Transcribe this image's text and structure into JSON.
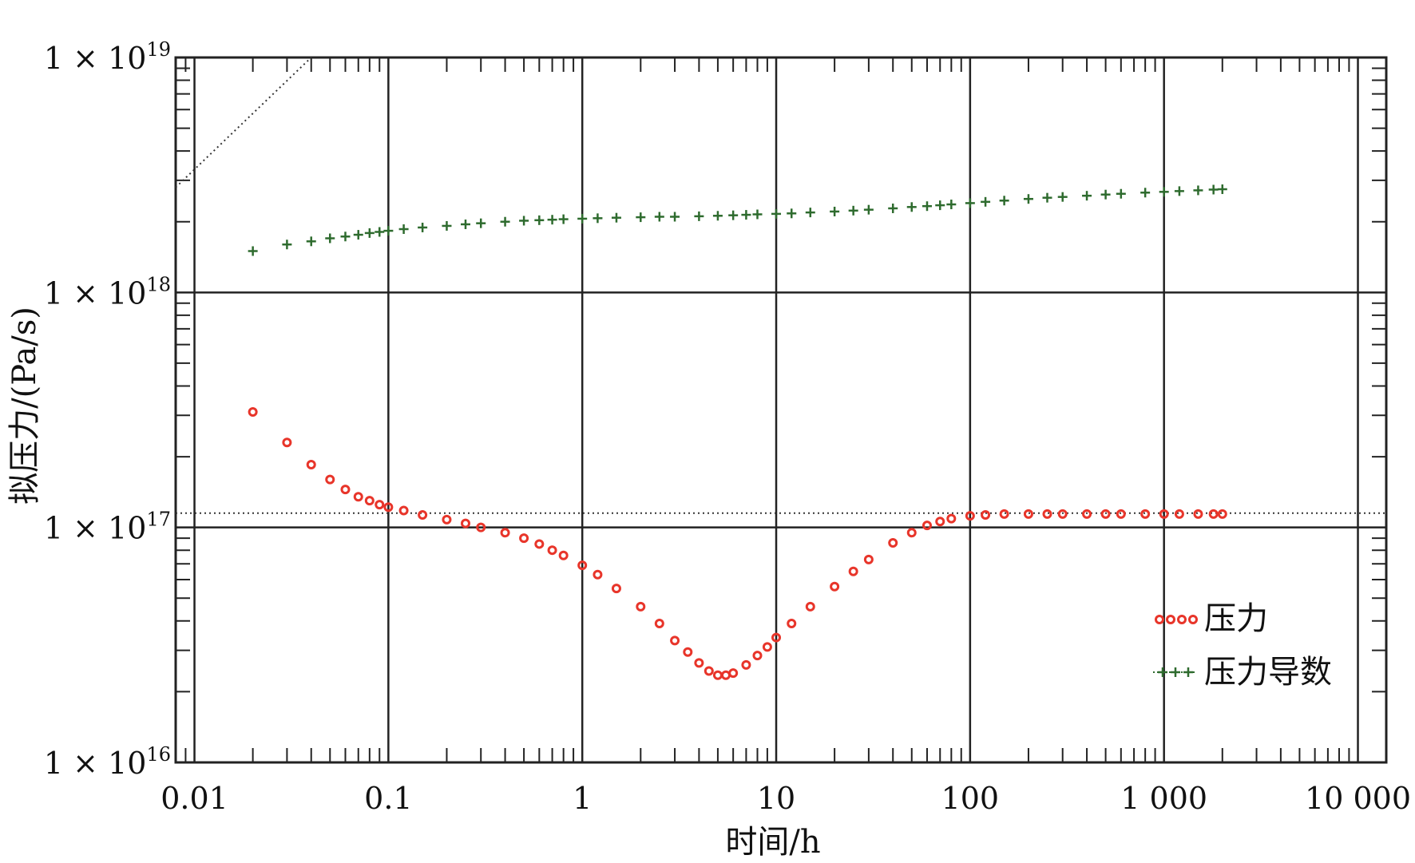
{
  "chart_data": {
    "type": "scatter",
    "xlabel": "时间/h",
    "ylabel": "拟压力/(Pa/s)",
    "x_scale": "log",
    "y_scale": "log",
    "xlim": [
      0.008,
      14000
    ],
    "ylim": [
      1e+16,
      1e+19
    ],
    "x_ticks": [
      0.01,
      0.1,
      1,
      10,
      100,
      1000,
      10000
    ],
    "x_tick_labels": [
      "0.01",
      "0.1",
      "1",
      "10",
      "100",
      "1 000",
      "10 000"
    ],
    "y_ticks": [
      1e+16,
      1e+17,
      1e+18,
      1e+19
    ],
    "y_tick_labels": [
      {
        "base": "1 × 10",
        "exp": "16"
      },
      {
        "base": "1 × 10",
        "exp": "17"
      },
      {
        "base": "1 × 10",
        "exp": "18"
      },
      {
        "base": "1 × 10",
        "exp": "19"
      }
    ],
    "grid": true,
    "legend_position": "bottom-right",
    "series": [
      {
        "name": "压力",
        "marker": "circle",
        "color": "#e8352a",
        "x": [
          0.02,
          0.03,
          0.04,
          0.05,
          0.06,
          0.07,
          0.08,
          0.09,
          0.1,
          0.12,
          0.15,
          0.2,
          0.25,
          0.3,
          0.4,
          0.5,
          0.6,
          0.7,
          0.8,
          1,
          1.2,
          1.5,
          2,
          2.5,
          3,
          3.5,
          4,
          4.5,
          5,
          5.5,
          6,
          7,
          8,
          9,
          10,
          12,
          15,
          20,
          25,
          30,
          40,
          50,
          60,
          70,
          80,
          100,
          120,
          150,
          200,
          250,
          300,
          400,
          500,
          600,
          800,
          1000,
          1200,
          1500,
          1800,
          2000
        ],
        "y": [
          3.1e+17,
          2.3e+17,
          1.85e+17,
          1.6e+17,
          1.45e+17,
          1.35e+17,
          1.3e+17,
          1.25e+17,
          1.22e+17,
          1.18e+17,
          1.13e+17,
          1.08e+17,
          1.04e+17,
          1e+17,
          9.5e+16,
          9e+16,
          8.5e+16,
          8e+16,
          7.6e+16,
          6.9e+16,
          6.3e+16,
          5.5e+16,
          4.6e+16,
          3.9e+16,
          3.3e+16,
          2.95e+16,
          2.65e+16,
          2.45e+16,
          2.35e+16,
          2.35e+16,
          2.4e+16,
          2.6e+16,
          2.85e+16,
          3.1e+16,
          3.4e+16,
          3.9e+16,
          4.6e+16,
          5.6e+16,
          6.5e+16,
          7.3e+16,
          8.6e+16,
          9.5e+16,
          1.02e+17,
          1.06e+17,
          1.09e+17,
          1.12e+17,
          1.13e+17,
          1.14e+17,
          1.14e+17,
          1.14e+17,
          1.14e+17,
          1.14e+17,
          1.14e+17,
          1.14e+17,
          1.14e+17,
          1.14e+17,
          1.14e+17,
          1.14e+17,
          1.14e+17,
          1.14e+17
        ]
      },
      {
        "name": "压力导数",
        "marker": "plus",
        "color": "#2e6b2e",
        "x": [
          0.02,
          0.03,
          0.04,
          0.05,
          0.06,
          0.07,
          0.08,
          0.09,
          0.1,
          0.12,
          0.15,
          0.2,
          0.25,
          0.3,
          0.4,
          0.5,
          0.6,
          0.7,
          0.8,
          1,
          1.2,
          1.5,
          2,
          2.5,
          3,
          4,
          5,
          6,
          7,
          8,
          10,
          12,
          15,
          20,
          25,
          30,
          40,
          50,
          60,
          70,
          80,
          100,
          120,
          150,
          200,
          250,
          300,
          400,
          500,
          600,
          800,
          1000,
          1200,
          1500,
          1800,
          2000
        ],
        "y": [
          1.5e+18,
          1.6e+18,
          1.65e+18,
          1.7e+18,
          1.73e+18,
          1.76e+18,
          1.79e+18,
          1.81e+18,
          1.83e+18,
          1.86e+18,
          1.89e+18,
          1.92e+18,
          1.95e+18,
          1.97e+18,
          2e+18,
          2.02e+18,
          2.03e+18,
          2.04e+18,
          2.05e+18,
          2.06e+18,
          2.07e+18,
          2.08e+18,
          2.09e+18,
          2.1e+18,
          2.1e+18,
          2.11e+18,
          2.12e+18,
          2.13e+18,
          2.14e+18,
          2.15e+18,
          2.16e+18,
          2.17e+18,
          2.19e+18,
          2.21e+18,
          2.23e+18,
          2.25e+18,
          2.28e+18,
          2.31e+18,
          2.33e+18,
          2.35e+18,
          2.37e+18,
          2.4e+18,
          2.43e+18,
          2.46e+18,
          2.5e+18,
          2.53e+18,
          2.55e+18,
          2.58e+18,
          2.61e+18,
          2.63e+18,
          2.66e+18,
          2.68e+18,
          2.7e+18,
          2.72e+18,
          2.74e+18,
          2.75e+18
        ]
      }
    ],
    "reference_lines": [
      {
        "kind": "horizontal",
        "y": 1.15e+17,
        "style": "dotted"
      },
      {
        "kind": "line",
        "x": [
          0.008,
          0.04
        ],
        "y": [
          2.8e+18,
          1e+19
        ],
        "style": "dotted"
      }
    ]
  }
}
